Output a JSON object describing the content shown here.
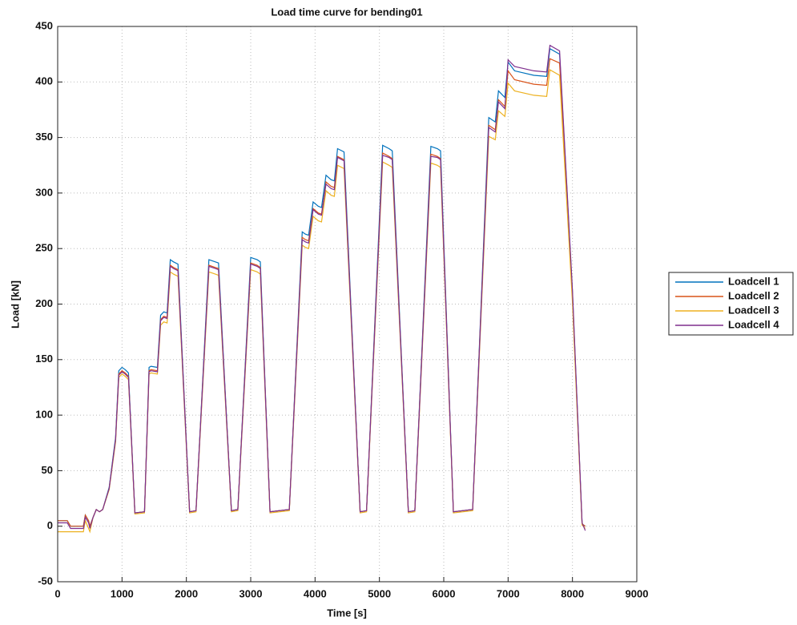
{
  "chart_data": {
    "type": "line",
    "title": "Load time curve for bending01",
    "x_label": "Time [s]",
    "y_label": "Load [kN]",
    "x": [
      0,
      150,
      200,
      400,
      430,
      480,
      500,
      550,
      600,
      650,
      700,
      800,
      900,
      950,
      1000,
      1050,
      1100,
      1200,
      1350,
      1420,
      1450,
      1550,
      1600,
      1650,
      1700,
      1750,
      1800,
      1870,
      2050,
      2150,
      2350,
      2450,
      2500,
      2700,
      2800,
      3000,
      3100,
      3150,
      3300,
      3600,
      3800,
      3850,
      3900,
      3970,
      4050,
      4100,
      4170,
      4250,
      4300,
      4350,
      4450,
      4700,
      4800,
      5050,
      5150,
      5200,
      5450,
      5550,
      5800,
      5900,
      5950,
      6150,
      6450,
      6700,
      6800,
      6850,
      6950,
      7000,
      7100,
      7400,
      7600,
      7650,
      7800,
      8000,
      8150,
      8200
    ],
    "series": [
      {
        "name": "Loadcell 1",
        "color": "#0072bd",
        "values": [
          5,
          5,
          0,
          0,
          10,
          5,
          0,
          8,
          15,
          13,
          15,
          35,
          80,
          140,
          143,
          141,
          138,
          12,
          13,
          143,
          144,
          143,
          190,
          193,
          192,
          240,
          238,
          236,
          13,
          14,
          240,
          238,
          237,
          14,
          15,
          242,
          240,
          238,
          13,
          15,
          265,
          263,
          262,
          292,
          288,
          287,
          316,
          312,
          311,
          340,
          337,
          13,
          14,
          343,
          340,
          338,
          13,
          14,
          342,
          340,
          338,
          13,
          15,
          368,
          364,
          392,
          386,
          418,
          410,
          406,
          405,
          430,
          425,
          210,
          2,
          0
        ]
      },
      {
        "name": "Loadcell 2",
        "color": "#d95319",
        "values": [
          5,
          5,
          0,
          0,
          10,
          5,
          0,
          8,
          15,
          13,
          15,
          34,
          78,
          137,
          140,
          138,
          135,
          12,
          13,
          140,
          141,
          140,
          186,
          189,
          188,
          235,
          233,
          231,
          13,
          14,
          235,
          233,
          232,
          14,
          15,
          237,
          235,
          233,
          13,
          15,
          260,
          258,
          257,
          286,
          282,
          281,
          310,
          306,
          305,
          333,
          330,
          13,
          14,
          336,
          333,
          331,
          13,
          14,
          335,
          333,
          331,
          13,
          15,
          361,
          357,
          384,
          378,
          410,
          402,
          398,
          397,
          421,
          417,
          206,
          2,
          0
        ]
      },
      {
        "name": "Loadcell 3",
        "color": "#edb120",
        "values": [
          -5,
          -5,
          -5,
          -5,
          5,
          -2,
          -5,
          8,
          15,
          13,
          15,
          33,
          76,
          134,
          137,
          135,
          132,
          11,
          12,
          137,
          138,
          137,
          181,
          184,
          183,
          229,
          227,
          225,
          12,
          13,
          229,
          227,
          226,
          13,
          14,
          231,
          229,
          227,
          12,
          14,
          253,
          251,
          250,
          279,
          275,
          274,
          302,
          298,
          297,
          325,
          322,
          12,
          13,
          328,
          325,
          323,
          12,
          13,
          327,
          325,
          323,
          12,
          14,
          351,
          348,
          374,
          369,
          399,
          392,
          388,
          387,
          411,
          406,
          201,
          1,
          -2
        ]
      },
      {
        "name": "Loadcell 4",
        "color": "#7e2f8e",
        "values": [
          3,
          3,
          -2,
          -2,
          8,
          3,
          -2,
          8,
          15,
          13,
          15,
          34,
          78,
          136,
          139,
          137,
          134,
          12,
          13,
          139,
          140,
          139,
          185,
          188,
          187,
          234,
          232,
          230,
          13,
          14,
          234,
          232,
          231,
          14,
          15,
          236,
          234,
          232,
          13,
          15,
          258,
          256,
          255,
          285,
          281,
          280,
          308,
          304,
          303,
          332,
          329,
          13,
          14,
          334,
          332,
          330,
          13,
          14,
          333,
          332,
          330,
          13,
          15,
          359,
          355,
          382,
          376,
          420,
          414,
          410,
          409,
          433,
          428,
          212,
          3,
          -4
        ]
      }
    ],
    "xlim": [
      0,
      9000
    ],
    "xticks": [
      0,
      1000,
      2000,
      3000,
      4000,
      5000,
      6000,
      7000,
      8000,
      9000
    ],
    "ylim": [
      -50,
      450
    ],
    "yticks": [
      -50,
      0,
      50,
      100,
      150,
      200,
      250,
      300,
      350,
      400,
      450
    ],
    "grid": true,
    "legend": "right"
  }
}
